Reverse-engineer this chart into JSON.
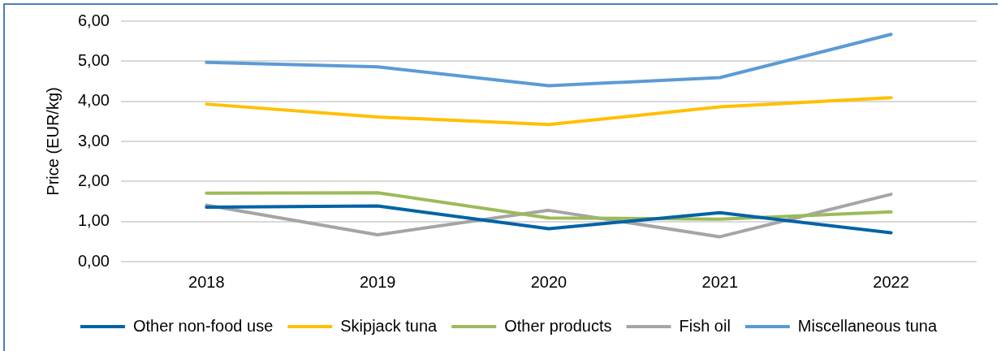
{
  "chart_data": {
    "type": "line",
    "ylabel": "Price (EUR/kg)",
    "categories": [
      "2018",
      "2019",
      "2020",
      "2021",
      "2022"
    ],
    "series": [
      {
        "name": "Other non-food use",
        "color": "#0063a6",
        "values": [
          1.36,
          1.39,
          0.82,
          1.22,
          0.72
        ]
      },
      {
        "name": "Skipjack tuna",
        "color": "#ffc000",
        "values": [
          3.93,
          3.61,
          3.42,
          3.86,
          4.09
        ]
      },
      {
        "name": "Other products",
        "color": "#9bbb59",
        "values": [
          1.71,
          1.72,
          1.09,
          1.06,
          1.24
        ]
      },
      {
        "name": "Fish oil",
        "color": "#a5a5a5",
        "values": [
          1.41,
          0.67,
          1.28,
          0.62,
          1.68
        ]
      },
      {
        "name": "Miscellaneous tuna",
        "color": "#5b9bd5",
        "values": [
          4.97,
          4.86,
          4.39,
          4.59,
          5.67
        ]
      }
    ],
    "ylim": [
      0,
      6
    ],
    "yticks": [
      {
        "value": 0,
        "label": "0,00"
      },
      {
        "value": 1,
        "label": "1,00"
      },
      {
        "value": 2,
        "label": "2,00"
      },
      {
        "value": 3,
        "label": "3,00"
      },
      {
        "value": 4,
        "label": "4,00"
      },
      {
        "value": 5,
        "label": "5,00"
      },
      {
        "value": 6,
        "label": "6,00"
      }
    ],
    "grid": "y",
    "legend": "bottom",
    "marker": "none",
    "line_style": "solid"
  }
}
